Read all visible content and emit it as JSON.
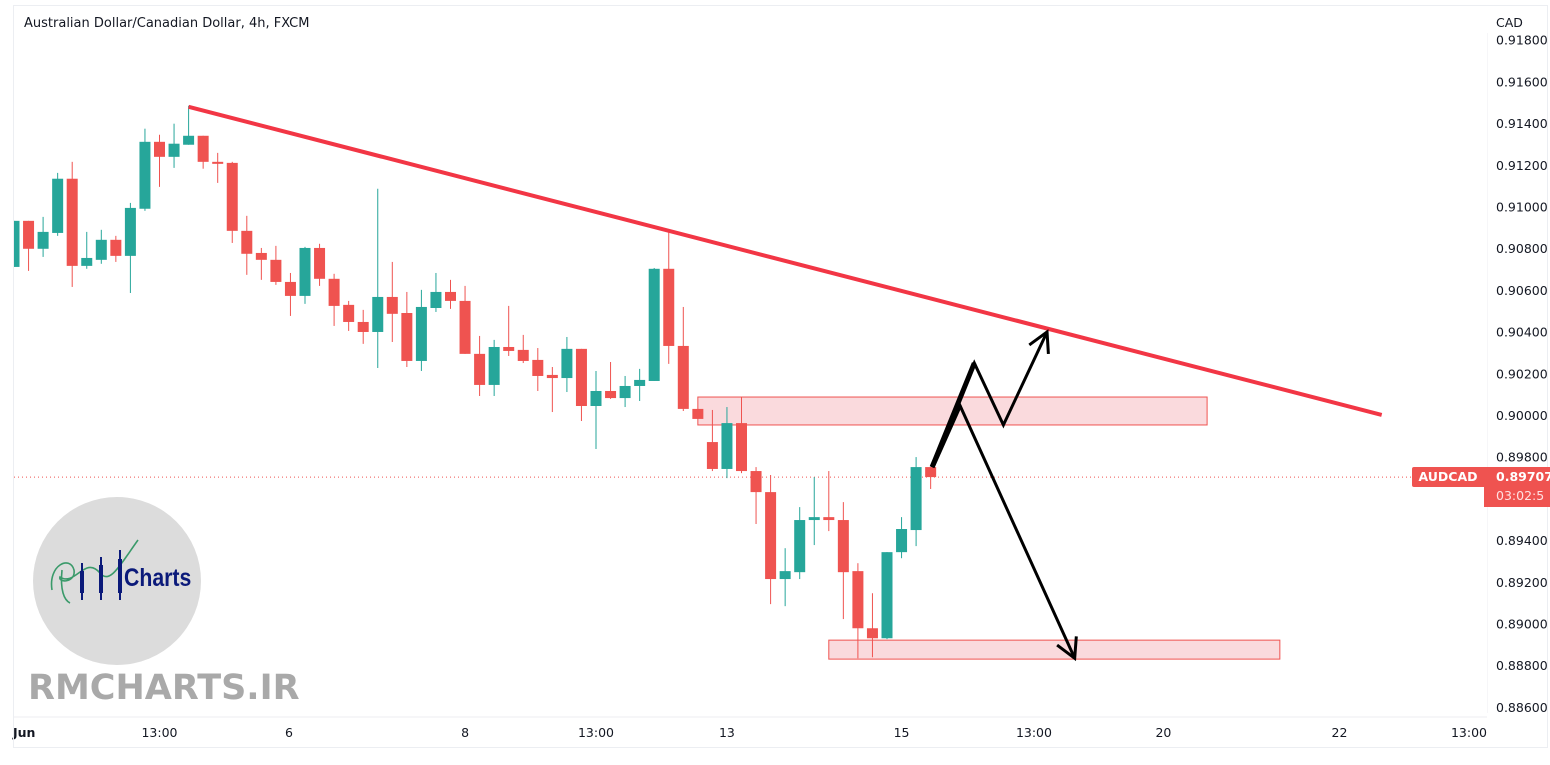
{
  "header": {
    "title": "Australian Dollar/Canadian Dollar, 4h, FXCM"
  },
  "watermark": {
    "logo_text": "Charts",
    "site": "RMCHARTS.IR"
  },
  "price_label": {
    "symbol": "AUDCAD",
    "price": "0.89707",
    "countdown": "03:02:5"
  },
  "colors": {
    "up": "#26a69a",
    "down": "#ef5350",
    "trendline": "#f23645",
    "zone_fill": "#f9d4d7",
    "zone_border": "#ef5350",
    "arrows": "#000000"
  },
  "chart_data": {
    "type": "candlestick",
    "title": "Australian Dollar/Canadian Dollar, 4h, FXCM",
    "yaxis": {
      "label": "CAD",
      "ticks": [
        "0.91800",
        "0.91600",
        "0.91400",
        "0.91200",
        "0.91000",
        "0.90800",
        "0.90600",
        "0.90400",
        "0.90200",
        "0.90000",
        "0.89800",
        "0.89400",
        "0.89200",
        "0.89000",
        "0.88800",
        "0.88600"
      ],
      "ylim": [
        0.886,
        0.918
      ]
    },
    "xaxis": {
      "ticks": [
        {
          "label": "Jun",
          "bar": 0.8
        },
        {
          "label": "13:00",
          "bar": 10
        },
        {
          "label": "6",
          "bar": 18.9
        },
        {
          "label": "8",
          "bar": 31
        },
        {
          "label": "13:00",
          "bar": 40
        },
        {
          "label": "13",
          "bar": 49
        },
        {
          "label": "15",
          "bar": 61
        },
        {
          "label": "13:00",
          "bar": 70.1
        },
        {
          "label": "20",
          "bar": 79
        },
        {
          "label": "22",
          "bar": 91.1
        },
        {
          "label": "13:00",
          "bar": 100
        }
      ]
    },
    "last_price": 0.89707,
    "candles_ohlc": [
      [
        0.90715,
        0.90936,
        0.90715,
        0.90936
      ],
      [
        0.90936,
        0.90936,
        0.90696,
        0.90802
      ],
      [
        0.90802,
        0.90955,
        0.90763,
        0.90883
      ],
      [
        0.90878,
        0.91166,
        0.90864,
        0.91138
      ],
      [
        0.91138,
        0.91219,
        0.90619,
        0.9072
      ],
      [
        0.9072,
        0.90883,
        0.90706,
        0.90758
      ],
      [
        0.90749,
        0.90893,
        0.9073,
        0.90845
      ],
      [
        0.90845,
        0.90864,
        0.90739,
        0.90768
      ],
      [
        0.90768,
        0.91022,
        0.9059,
        0.90998
      ],
      [
        0.90994,
        0.91378,
        0.90984,
        0.91315
      ],
      [
        0.91315,
        0.91349,
        0.91099,
        0.91243
      ],
      [
        0.91243,
        0.91402,
        0.9119,
        0.91306
      ],
      [
        0.91301,
        0.91488,
        0.91301,
        0.91344
      ],
      [
        0.91344,
        0.91344,
        0.91186,
        0.91219
      ],
      [
        0.91219,
        0.91262,
        0.91118,
        0.91214
      ],
      [
        0.91214,
        0.91219,
        0.9083,
        0.90888
      ],
      [
        0.90888,
        0.9096,
        0.90677,
        0.90778
      ],
      [
        0.90782,
        0.90806,
        0.90653,
        0.90749
      ],
      [
        0.90749,
        0.90816,
        0.90629,
        0.90643
      ],
      [
        0.90643,
        0.90686,
        0.9048,
        0.90576
      ],
      [
        0.90576,
        0.90811,
        0.90538,
        0.90806
      ],
      [
        0.90806,
        0.90826,
        0.90624,
        0.90658
      ],
      [
        0.90658,
        0.90682,
        0.90432,
        0.90528
      ],
      [
        0.90533,
        0.90552,
        0.90408,
        0.90451
      ],
      [
        0.90451,
        0.90509,
        0.90346,
        0.90403
      ],
      [
        0.90403,
        0.9109,
        0.9023,
        0.90571
      ],
      [
        0.90571,
        0.90739,
        0.90355,
        0.9049
      ],
      [
        0.90494,
        0.90595,
        0.90235,
        0.90264
      ],
      [
        0.90264,
        0.90605,
        0.90216,
        0.90523
      ],
      [
        0.90518,
        0.90686,
        0.90499,
        0.90595
      ],
      [
        0.90595,
        0.90653,
        0.90514,
        0.90552
      ],
      [
        0.90552,
        0.90624,
        0.90298,
        0.90298
      ],
      [
        0.90298,
        0.90384,
        0.90096,
        0.90149
      ],
      [
        0.90149,
        0.90365,
        0.90096,
        0.90331
      ],
      [
        0.90331,
        0.90528,
        0.90288,
        0.90312
      ],
      [
        0.90317,
        0.90389,
        0.90254,
        0.90264
      ],
      [
        0.90269,
        0.90326,
        0.9012,
        0.90192
      ],
      [
        0.90197,
        0.90235,
        0.90019,
        0.90182
      ],
      [
        0.90182,
        0.90379,
        0.90115,
        0.90322
      ],
      [
        0.90322,
        0.90322,
        0.89976,
        0.90048
      ],
      [
        0.90048,
        0.90216,
        0.89842,
        0.9012
      ],
      [
        0.9012,
        0.90259,
        0.90082,
        0.90086
      ],
      [
        0.90086,
        0.90192,
        0.90043,
        0.90144
      ],
      [
        0.90144,
        0.90226,
        0.90072,
        0.90173
      ],
      [
        0.90168,
        0.9071,
        0.90168,
        0.90706
      ],
      [
        0.90706,
        0.90883,
        0.9025,
        0.90336
      ],
      [
        0.90336,
        0.90523,
        0.90024,
        0.90034
      ],
      [
        0.90034,
        0.90034,
        0.89986,
        0.89986
      ],
      [
        0.89875,
        0.90029,
        0.89736,
        0.89746
      ],
      [
        0.89746,
        0.90043,
        0.89702,
        0.89966
      ],
      [
        0.89966,
        0.90091,
        0.89726,
        0.89736
      ],
      [
        0.89736,
        0.89755,
        0.89482,
        0.89635
      ],
      [
        0.89635,
        0.89717,
        0.89098,
        0.89218
      ],
      [
        0.89218,
        0.89366,
        0.89088,
        0.89256
      ],
      [
        0.89251,
        0.89563,
        0.89218,
        0.89501
      ],
      [
        0.89501,
        0.89707,
        0.89381,
        0.89515
      ],
      [
        0.89515,
        0.89736,
        0.89448,
        0.89501
      ],
      [
        0.89501,
        0.89587,
        0.89026,
        0.89251
      ],
      [
        0.89256,
        0.89294,
        0.88838,
        0.88982
      ],
      [
        0.88982,
        0.8915,
        0.88843,
        0.88934
      ],
      [
        0.88934,
        0.89347,
        0.8893,
        0.89347
      ],
      [
        0.89347,
        0.89515,
        0.89318,
        0.89458
      ],
      [
        0.89453,
        0.89803,
        0.89376,
        0.89755
      ],
      [
        0.89755,
        0.89755,
        0.8965,
        0.89707
      ]
    ],
    "drawings": {
      "trendline": {
        "from": {
          "bar": 12,
          "price": 0.91483
        },
        "to": {
          "bar": 94,
          "price": 0.90005
        }
      },
      "zones": [
        {
          "name": "resistance-zone",
          "bar_start": 47,
          "bar_end": 82,
          "price_top": 0.90091,
          "price_bottom": 0.89957
        },
        {
          "name": "support-zone",
          "bar_start": 56,
          "bar_end": 87,
          "price_top": 0.88925,
          "price_bottom": 0.88834
        }
      ],
      "arrows": [
        {
          "name": "bullish-scenario-arrow",
          "points": [
            {
              "bar": 63.1,
              "price": 0.89755
            },
            {
              "bar": 66.0,
              "price": 0.90254
            },
            {
              "bar": 68.0,
              "price": 0.89957
            },
            {
              "bar": 71.0,
              "price": 0.90403
            }
          ]
        },
        {
          "name": "bearish-scenario-arrow",
          "points": [
            {
              "bar": 63.1,
              "price": 0.89755
            },
            {
              "bar": 65.0,
              "price": 0.90053
            },
            {
              "bar": 72.9,
              "price": 0.88838
            }
          ]
        }
      ]
    }
  }
}
